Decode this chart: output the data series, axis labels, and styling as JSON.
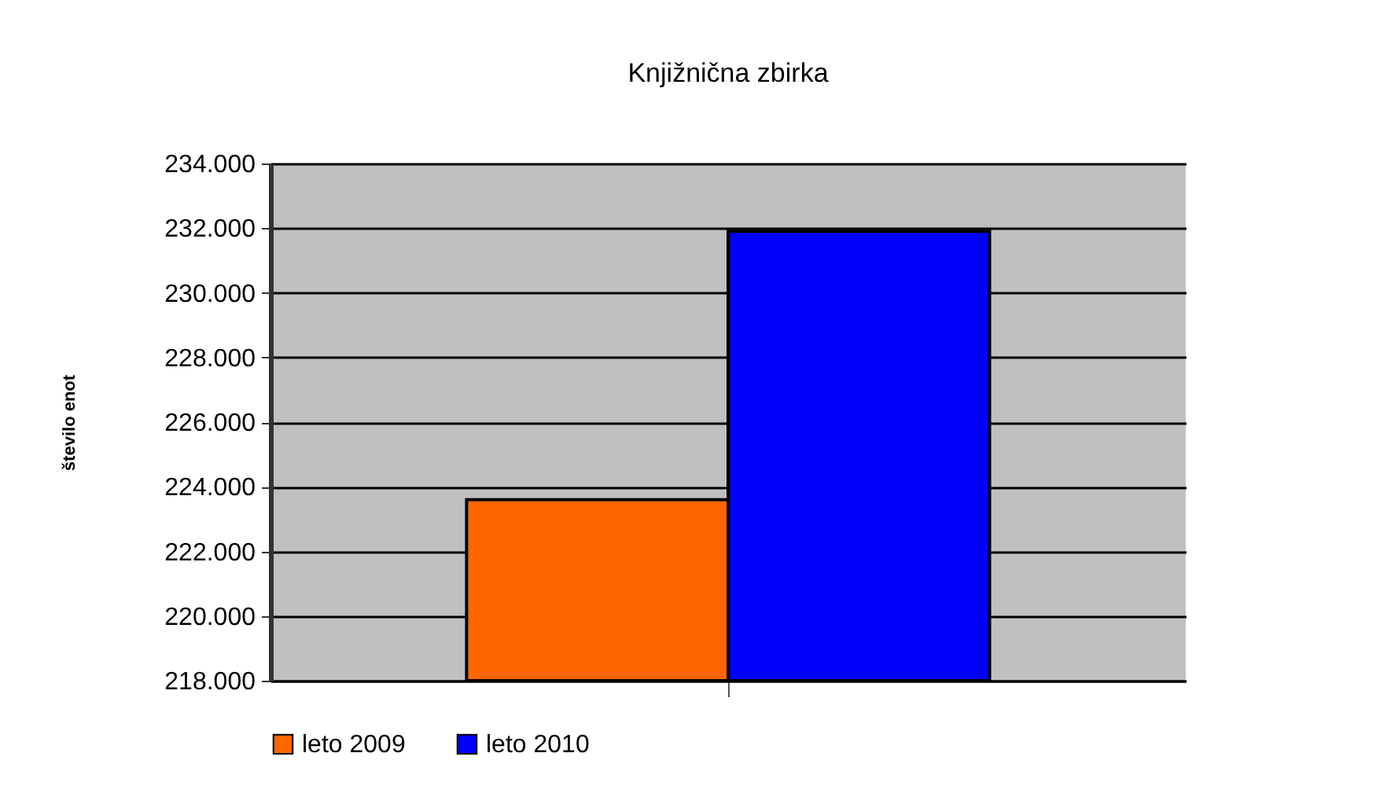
{
  "chart_data": {
    "type": "bar",
    "title": "Knjižnična zbirka",
    "ylabel": "število enot",
    "categories": [
      null
    ],
    "series": [
      {
        "name": "leto 2009",
        "color": "#ff6600",
        "values": [
          223600
        ]
      },
      {
        "name": "leto 2010",
        "color": "#0000ff",
        "values": [
          231900
        ]
      }
    ],
    "ylim": [
      218000,
      234000
    ],
    "yticks": [
      {
        "value": 218000,
        "label": "218.000"
      },
      {
        "value": 220000,
        "label": "220.000"
      },
      {
        "value": 222000,
        "label": "222.000"
      },
      {
        "value": 224000,
        "label": "224.000"
      },
      {
        "value": 226000,
        "label": "226.000"
      },
      {
        "value": 228000,
        "label": "228.000"
      },
      {
        "value": 230000,
        "label": "230.000"
      },
      {
        "value": 232000,
        "label": "232.000"
      },
      {
        "value": 234000,
        "label": "234.000"
      }
    ],
    "grid": "y",
    "legend": "bottom"
  }
}
